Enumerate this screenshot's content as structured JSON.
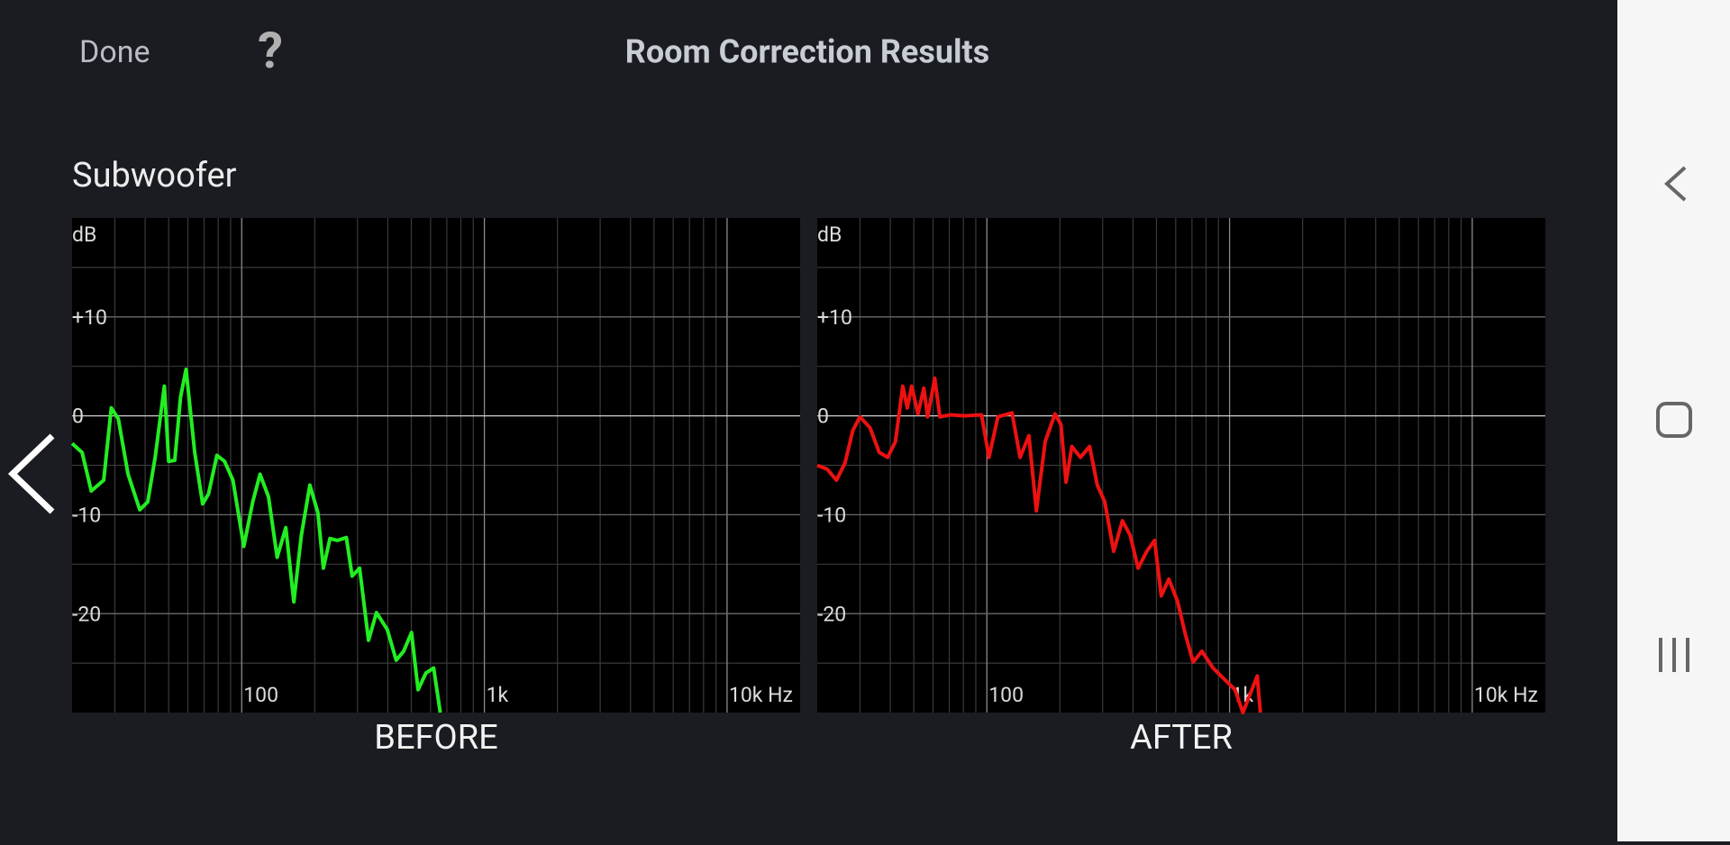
{
  "header": {
    "done": "Done",
    "help": "?",
    "title": "Room Correction Results"
  },
  "section_title": "Subwoofer",
  "chart_data": [
    {
      "type": "line",
      "title": "BEFORE",
      "y_unit": "dB",
      "log_x": true,
      "grid": true,
      "xlim": [
        20,
        20000
      ],
      "ylim": [
        -30,
        20
      ],
      "xticks": [
        100,
        {
          "value": 1000,
          "label": "1k"
        },
        {
          "value": 10000,
          "label": "10k Hz"
        }
      ],
      "minor_xticks": [
        30,
        40,
        50,
        60,
        70,
        80,
        90,
        200,
        300,
        400,
        500,
        600,
        700,
        800,
        900,
        2000,
        3000,
        4000,
        5000,
        6000,
        7000,
        8000,
        9000
      ],
      "yticks": [
        {
          "value": 10,
          "label": "+10"
        },
        0,
        -10,
        -20
      ],
      "minor_yticks": [
        15,
        5,
        -5,
        -15,
        -25
      ],
      "x": [
        20,
        22,
        24,
        27,
        29,
        31,
        34,
        38,
        41,
        44,
        48,
        50,
        53,
        56,
        59,
        64,
        69,
        73,
        79,
        85,
        92,
        102,
        111,
        119,
        129,
        140,
        152,
        164,
        176,
        191,
        206,
        217,
        231,
        248,
        270,
        285,
        306,
        333,
        359,
        398,
        433,
        465,
        501,
        533,
        574,
        618,
        658
      ],
      "series": [
        {
          "color": "#22ee22",
          "values": [
            -2.8,
            -3.7,
            -7.6,
            -6.5,
            0.8,
            -0.3,
            -5.9,
            -9.5,
            -8.7,
            -4.2,
            3.0,
            -4.6,
            -4.5,
            1.9,
            4.7,
            -3.7,
            -8.9,
            -7.9,
            -4.0,
            -4.6,
            -6.5,
            -13.2,
            -8.7,
            -5.9,
            -8.2,
            -14.3,
            -11.3,
            -18.8,
            -12.1,
            -7.0,
            -9.8,
            -15.4,
            -12.4,
            -12.6,
            -12.3,
            -16.2,
            -15.4,
            -22.7,
            -19.9,
            -21.6,
            -24.7,
            -23.8,
            -21.9,
            -27.7,
            -26.0,
            -25.5,
            -30.0
          ]
        }
      ]
    },
    {
      "type": "line",
      "title": "AFTER",
      "y_unit": "dB",
      "log_x": true,
      "grid": true,
      "xlim": [
        20,
        20000
      ],
      "ylim": [
        -30,
        20
      ],
      "xticks": [
        100,
        {
          "value": 1000,
          "label": "1k"
        },
        {
          "value": 10000,
          "label": "10k Hz"
        }
      ],
      "minor_xticks": [
        30,
        40,
        50,
        60,
        70,
        80,
        90,
        200,
        300,
        400,
        500,
        600,
        700,
        800,
        900,
        2000,
        3000,
        4000,
        5000,
        6000,
        7000,
        8000,
        9000
      ],
      "yticks": [
        {
          "value": 10,
          "label": "+10"
        },
        0,
        -10,
        -20
      ],
      "minor_yticks": [
        15,
        5,
        -5,
        -15,
        -25
      ],
      "x": [
        20,
        22,
        24,
        26,
        28,
        30,
        33,
        36,
        39,
        42,
        45,
        47,
        49,
        52,
        55,
        57,
        61,
        64,
        71,
        81,
        95,
        102,
        111,
        127,
        137,
        149,
        160,
        174,
        191,
        202,
        212,
        224,
        243,
        265,
        285,
        306,
        333,
        362,
        390,
        420,
        456,
        491,
        523,
        562,
        611,
        658,
        708,
        769,
        855,
        949,
        1054,
        1135,
        1208,
        1300,
        1340
      ],
      "series": [
        {
          "color": "#ee1111",
          "values": [
            -5.0,
            -5.4,
            -6.5,
            -4.8,
            -1.5,
            -0.1,
            -1.2,
            -3.7,
            -4.2,
            -2.6,
            3.0,
            0.8,
            3.0,
            0.2,
            2.8,
            -0.1,
            3.8,
            -0.1,
            0.1,
            0,
            0.1,
            -4.2,
            -0.1,
            0.3,
            -4.2,
            -2.0,
            -9.6,
            -2.6,
            0.2,
            -0.9,
            -6.7,
            -3.1,
            -4.2,
            -3.1,
            -7.0,
            -8.7,
            -13.7,
            -10.6,
            -12.1,
            -15.4,
            -13.7,
            -12.6,
            -18.2,
            -16.5,
            -18.8,
            -22.1,
            -24.9,
            -23.8,
            -25.5,
            -26.6,
            -27.7,
            -30.0,
            -28.3,
            -26.3,
            -30.0
          ]
        }
      ]
    }
  ]
}
